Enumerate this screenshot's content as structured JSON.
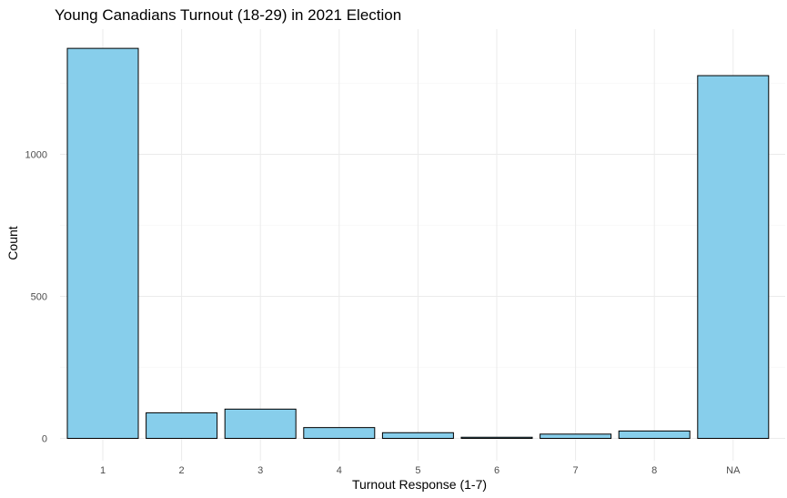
{
  "chart_data": {
    "type": "bar",
    "title": "Young Canadians Turnout (18-29) in 2021 Election",
    "xlabel": "Turnout Response (1-7)",
    "ylabel": "Count",
    "categories": [
      "1",
      "2",
      "3",
      "4",
      "5",
      "6",
      "7",
      "8",
      "NA"
    ],
    "values": [
      1373,
      90,
      103,
      38,
      20,
      4,
      15,
      26,
      1277
    ],
    "ylim": [
      0,
      1373
    ],
    "yticks": [
      0,
      500,
      1000
    ],
    "y_minor_ticks": [
      250,
      750,
      1250
    ],
    "grid": true,
    "bar_color": "#87CEEB",
    "bar_border_color": "#000000"
  }
}
